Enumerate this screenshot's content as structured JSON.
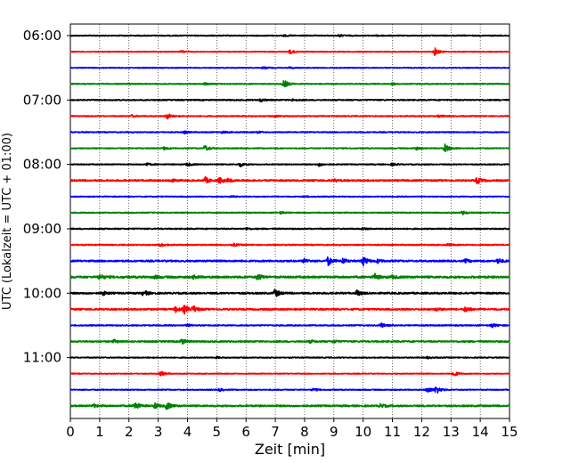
{
  "chart_data": {
    "type": "line",
    "chart_kind": "helicorder (seismogram drum plot)",
    "xlabel": "Zeit  [min]",
    "ylabel": "UTC (Lokalzeit = UTC + 01:00)",
    "xlim": [
      0,
      15
    ],
    "x_ticks": [
      0,
      1,
      2,
      3,
      4,
      5,
      6,
      7,
      8,
      9,
      10,
      11,
      12,
      13,
      14,
      15
    ],
    "y_tick_labels": [
      "06:00",
      "07:00",
      "08:00",
      "09:00",
      "10:00",
      "11:00"
    ],
    "x_grid": "dotted vertical lines at each minute",
    "y_grid": false,
    "legend": "none",
    "trace_interval_minutes": 15,
    "colors": [
      "#000000",
      "#ff0000",
      "#0000ff",
      "#008000"
    ],
    "traces": [
      {
        "start": "06:00",
        "color": "#000000",
        "noise": 0.6,
        "events": [
          [
            7.3,
            0.4
          ],
          [
            9.2,
            0.5
          ],
          [
            10.5,
            0.3
          ]
        ]
      },
      {
        "start": "06:15",
        "color": "#ff0000",
        "noise": 0.5,
        "events": [
          [
            3.8,
            0.6
          ],
          [
            7.5,
            1.2
          ],
          [
            12.45,
            2.2
          ]
        ]
      },
      {
        "start": "06:30",
        "color": "#0000ff",
        "noise": 0.5,
        "events": [
          [
            6.6,
            0.5
          ],
          [
            7.5,
            0.4
          ]
        ]
      },
      {
        "start": "06:45",
        "color": "#008000",
        "noise": 0.6,
        "events": [
          [
            2.0,
            0.4
          ],
          [
            4.6,
            0.5
          ],
          [
            7.3,
            2.2
          ],
          [
            11.0,
            0.5
          ]
        ]
      },
      {
        "start": "07:00",
        "color": "#000000",
        "noise": 0.7,
        "events": [
          [
            6.5,
            0.8
          ],
          [
            7.6,
            0.5
          ]
        ]
      },
      {
        "start": "07:15",
        "color": "#ff0000",
        "noise": 0.6,
        "events": [
          [
            2.1,
            0.6
          ],
          [
            3.3,
            1.8
          ],
          [
            7.0,
            0.6
          ],
          [
            12.6,
            0.7
          ]
        ]
      },
      {
        "start": "07:30",
        "color": "#0000ff",
        "noise": 0.6,
        "events": [
          [
            3.9,
            0.6
          ],
          [
            5.2,
            0.5
          ],
          [
            6.4,
            0.5
          ]
        ]
      },
      {
        "start": "07:45",
        "color": "#008000",
        "noise": 0.6,
        "events": [
          [
            3.2,
            0.8
          ],
          [
            4.6,
            1.7
          ],
          [
            11.8,
            0.8
          ],
          [
            12.8,
            2.3
          ]
        ]
      },
      {
        "start": "08:00",
        "color": "#000000",
        "noise": 0.6,
        "events": [
          [
            2.6,
            0.7
          ],
          [
            4.0,
            0.9
          ],
          [
            5.8,
            1.2
          ],
          [
            8.5,
            0.9
          ],
          [
            11.0,
            0.7
          ]
        ]
      },
      {
        "start": "08:15",
        "color": "#ff0000",
        "noise": 1.0,
        "events": [
          [
            3.4,
            1.0
          ],
          [
            4.6,
            1.8
          ],
          [
            5.1,
            1.6
          ],
          [
            5.4,
            0.8
          ],
          [
            9.0,
            0.6
          ],
          [
            13.9,
            1.8
          ]
        ]
      },
      {
        "start": "08:30",
        "color": "#0000ff",
        "noise": 0.5,
        "events": [
          [
            5.5,
            0.5
          ],
          [
            8.0,
            0.4
          ]
        ]
      },
      {
        "start": "08:45",
        "color": "#008000",
        "noise": 0.6,
        "events": [
          [
            7.2,
            0.6
          ],
          [
            13.4,
            1.0
          ]
        ]
      },
      {
        "start": "09:00",
        "color": "#000000",
        "noise": 0.7,
        "events": [
          [
            6.0,
            0.5
          ],
          [
            10.0,
            0.6
          ]
        ]
      },
      {
        "start": "09:15",
        "color": "#ff0000",
        "noise": 0.7,
        "events": [
          [
            3.1,
            0.9
          ],
          [
            5.6,
            0.7
          ],
          [
            12.9,
            0.6
          ]
        ]
      },
      {
        "start": "09:30",
        "color": "#0000ff",
        "noise": 1.0,
        "events": [
          [
            8.0,
            1.2
          ],
          [
            8.8,
            2.4
          ],
          [
            9.3,
            1.4
          ],
          [
            10.0,
            2.6
          ],
          [
            10.5,
            1.0
          ],
          [
            13.5,
            0.9
          ],
          [
            14.6,
            1.5
          ]
        ]
      },
      {
        "start": "09:45",
        "color": "#008000",
        "noise": 1.2,
        "events": [
          [
            1.0,
            1.5
          ],
          [
            2.9,
            0.8
          ],
          [
            4.2,
            0.8
          ],
          [
            6.4,
            1.6
          ],
          [
            10.4,
            1.6
          ],
          [
            11.0,
            0.8
          ]
        ]
      },
      {
        "start": "10:00",
        "color": "#000000",
        "noise": 1.0,
        "events": [
          [
            1.1,
            1.2
          ],
          [
            2.5,
            1.6
          ],
          [
            7.0,
            2.2
          ],
          [
            9.8,
            1.5
          ]
        ]
      },
      {
        "start": "10:15",
        "color": "#ff0000",
        "noise": 1.0,
        "events": [
          [
            3.6,
            1.4
          ],
          [
            3.9,
            2.2
          ],
          [
            4.2,
            1.8
          ],
          [
            12.5,
            0.8
          ],
          [
            13.5,
            1.6
          ]
        ]
      },
      {
        "start": "10:30",
        "color": "#0000ff",
        "noise": 0.7,
        "events": [
          [
            4.0,
            0.6
          ],
          [
            10.6,
            1.4
          ],
          [
            14.4,
            1.2
          ]
        ]
      },
      {
        "start": "10:45",
        "color": "#008000",
        "noise": 0.9,
        "events": [
          [
            1.5,
            0.8
          ],
          [
            3.8,
            1.6
          ],
          [
            8.2,
            0.7
          ],
          [
            9.0,
            0.7
          ]
        ]
      },
      {
        "start": "11:00",
        "color": "#000000",
        "noise": 0.6,
        "events": [
          [
            5.0,
            0.4
          ],
          [
            12.2,
            0.5
          ]
        ]
      },
      {
        "start": "11:15",
        "color": "#ff0000",
        "noise": 0.5,
        "events": [
          [
            3.1,
            1.4
          ],
          [
            13.1,
            1.8
          ]
        ]
      },
      {
        "start": "11:30",
        "color": "#0000ff",
        "noise": 0.6,
        "events": [
          [
            5.1,
            0.7
          ],
          [
            8.3,
            0.7
          ],
          [
            12.2,
            1.8
          ],
          [
            12.5,
            2.2
          ]
        ]
      },
      {
        "start": "11:45",
        "color": "#008000",
        "noise": 1.0,
        "events": [
          [
            0.8,
            0.8
          ],
          [
            2.2,
            2.4
          ],
          [
            2.9,
            1.4
          ],
          [
            3.3,
            2.0
          ],
          [
            10.6,
            1.0
          ]
        ]
      }
    ]
  }
}
